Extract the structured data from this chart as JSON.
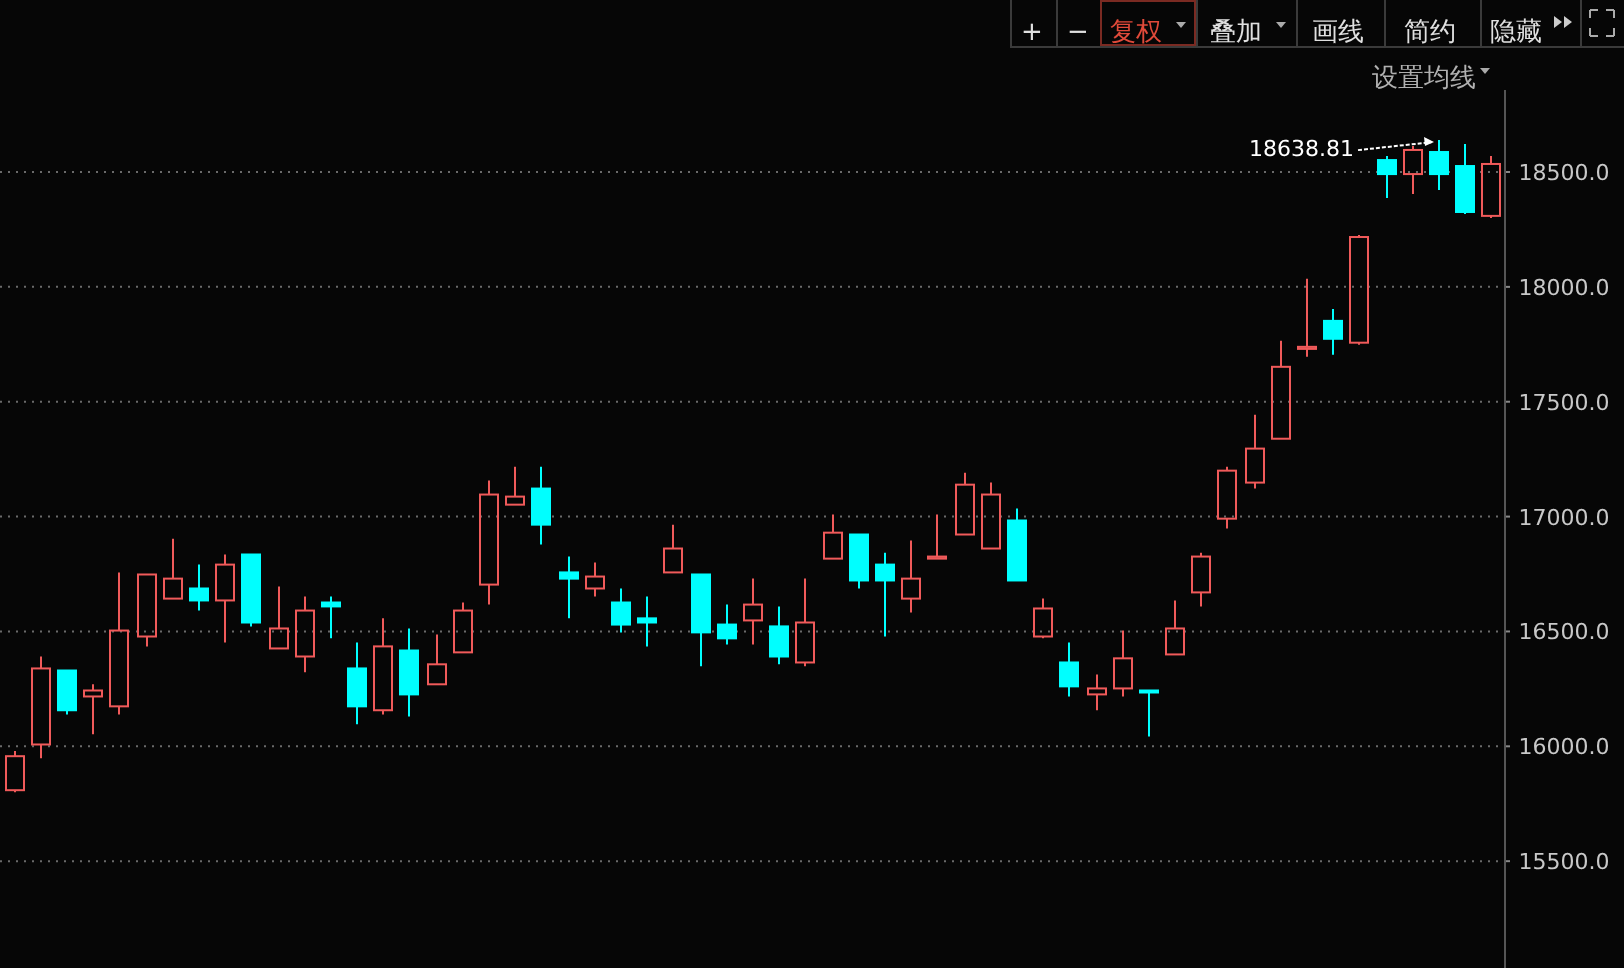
{
  "chart_data": {
    "type": "candlestick",
    "categories": [
      null,
      null,
      null,
      null,
      null,
      null,
      null,
      null,
      null,
      null,
      null,
      null,
      null,
      null,
      null,
      null,
      null,
      null,
      null,
      null,
      null,
      null,
      null,
      null,
      null,
      null,
      null,
      null,
      null,
      null,
      null,
      null,
      null,
      null,
      null,
      null,
      null,
      null,
      null,
      null,
      null,
      null,
      null,
      null,
      null,
      null,
      null,
      null,
      null,
      null,
      null,
      null,
      null,
      null,
      null,
      null,
      null
    ],
    "ohlc": [
      [
        15809,
        15980,
        15800,
        15957
      ],
      [
        16008,
        16391,
        15948,
        16339
      ],
      [
        16330,
        16330,
        16139,
        16157
      ],
      [
        16217,
        16270,
        16052,
        16243
      ],
      [
        16174,
        16757,
        16139,
        16504
      ],
      [
        16478,
        16748,
        16435,
        16748
      ],
      [
        16643,
        16904,
        16643,
        16730
      ],
      [
        16687,
        16791,
        16591,
        16635
      ],
      [
        16635,
        16835,
        16452,
        16791
      ],
      [
        16835,
        16835,
        16522,
        16539
      ],
      [
        16426,
        16696,
        16426,
        16513
      ],
      [
        16391,
        16652,
        16322,
        16591
      ],
      [
        16626,
        16652,
        16470,
        16609
      ],
      [
        16339,
        16452,
        16096,
        16174
      ],
      [
        16157,
        16557,
        16139,
        16435
      ],
      [
        16417,
        16513,
        16130,
        16226
      ],
      [
        16270,
        16487,
        16270,
        16357
      ],
      [
        16409,
        16626,
        16409,
        16591
      ],
      [
        16704,
        17157,
        16617,
        17096
      ],
      [
        17052,
        17217,
        17052,
        17087
      ],
      [
        17122,
        17217,
        16878,
        16965
      ],
      [
        16757,
        16826,
        16557,
        16730
      ],
      [
        16687,
        16800,
        16652,
        16739
      ],
      [
        16626,
        16687,
        16496,
        16530
      ],
      [
        16557,
        16652,
        16435,
        16539
      ],
      [
        16757,
        16965,
        16757,
        16861
      ],
      [
        16748,
        16748,
        16348,
        16496
      ],
      [
        16530,
        16617,
        16443,
        16470
      ],
      [
        16548,
        16730,
        16443,
        16617
      ],
      [
        16522,
        16609,
        16357,
        16391
      ],
      [
        16365,
        16730,
        16348,
        16539
      ],
      [
        16817,
        17009,
        16817,
        16930
      ],
      [
        16922,
        16922,
        16687,
        16722
      ],
      [
        16791,
        16843,
        16478,
        16722
      ],
      [
        16643,
        16896,
        16583,
        16730
      ],
      [
        16817,
        17009,
        16817,
        16826
      ],
      [
        16922,
        17191,
        16922,
        17139
      ],
      [
        16861,
        17148,
        16861,
        17096
      ],
      [
        16983,
        17035,
        16722,
        16722
      ],
      [
        16478,
        16643,
        16470,
        16600
      ],
      [
        16365,
        16452,
        16217,
        16261
      ],
      [
        16226,
        16313,
        16157,
        16252
      ],
      [
        16252,
        16504,
        16217,
        16383
      ],
      [
        16243,
        16243,
        16043,
        16235
      ],
      [
        16400,
        16635,
        16400,
        16513
      ],
      [
        16670,
        16843,
        16609,
        16826
      ],
      [
        16991,
        17217,
        16948,
        17200
      ],
      [
        17148,
        17443,
        17122,
        17296
      ],
      [
        17339,
        17765,
        17339,
        17652
      ],
      [
        17730,
        18035,
        17696,
        17739
      ],
      [
        17852,
        17904,
        17704,
        17774
      ],
      [
        17757,
        18226,
        17748,
        18217
      ],
      [
        18552,
        18570,
        18387,
        18491
      ],
      [
        18491,
        18613,
        18404,
        18596
      ],
      [
        18587,
        18638.81,
        18422,
        18491
      ],
      [
        18526,
        18622,
        18317,
        18326
      ],
      [
        18309,
        18570,
        18300,
        18535
      ]
    ],
    "colors": [
      "#f05a5a",
      "#f05a5a",
      "#00ffff",
      "#f05a5a",
      "#f05a5a",
      "#f05a5a",
      "#f05a5a",
      "#00ffff",
      "#f05a5a",
      "#00ffff",
      "#f05a5a",
      "#f05a5a",
      "#00ffff",
      "#00ffff",
      "#f05a5a",
      "#00ffff",
      "#f05a5a",
      "#f05a5a",
      "#f05a5a",
      "#f05a5a",
      "#00ffff",
      "#00ffff",
      "#f05a5a",
      "#00ffff",
      "#00ffff",
      "#f05a5a",
      "#00ffff",
      "#00ffff",
      "#f05a5a",
      "#00ffff",
      "#f05a5a",
      "#f05a5a",
      "#00ffff",
      "#00ffff",
      "#f05a5a",
      "#f05a5a",
      "#f05a5a",
      "#f05a5a",
      "#00ffff",
      "#f05a5a",
      "#00ffff",
      "#f05a5a",
      "#f05a5a",
      "#00ffff",
      "#f05a5a",
      "#f05a5a",
      "#f05a5a",
      "#f05a5a",
      "#f05a5a",
      "#f05a5a",
      "#00ffff",
      "#f05a5a",
      "#00ffff",
      "#f05a5a",
      "#00ffff",
      "#00ffff",
      "#f05a5a"
    ],
    "ylim": [
      15035,
      18857
    ],
    "yticks": [
      {
        "value": 15500,
        "label": "15500.0"
      },
      {
        "value": 16000,
        "label": "16000.0"
      },
      {
        "value": 16500,
        "label": "16500.0"
      },
      {
        "value": 17000,
        "label": "17000.0"
      },
      {
        "value": 17500,
        "label": "17500.0"
      },
      {
        "value": 18000,
        "label": "18000.0"
      },
      {
        "value": 18500,
        "label": "18500.0"
      }
    ],
    "grid": "y",
    "annotations": [
      "+",
      "−",
      "复权",
      "叠加",
      "画线",
      "简约",
      "隐藏",
      "设置均线",
      "18638.81"
    ]
  }
}
